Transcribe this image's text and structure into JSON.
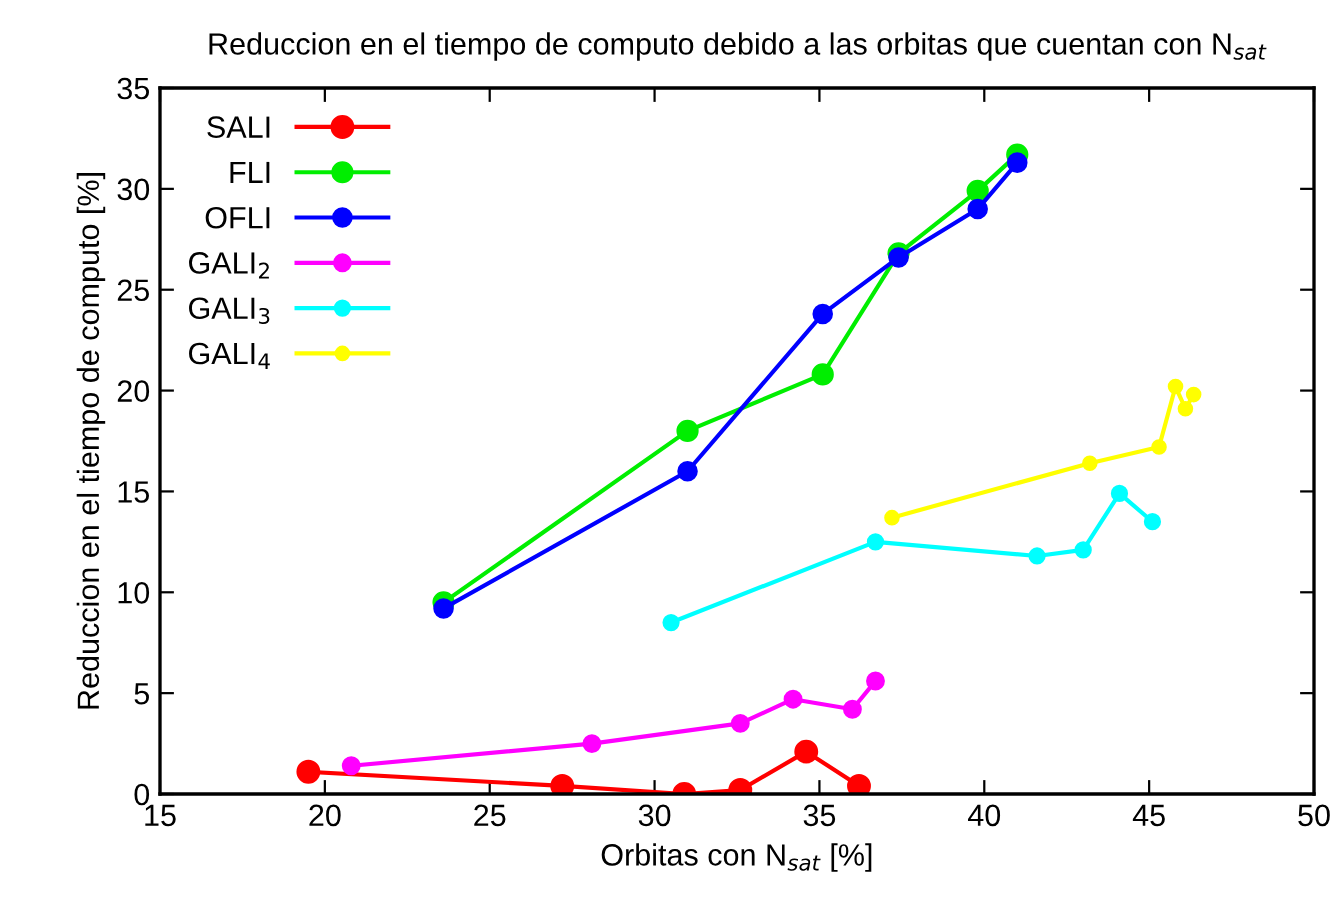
{
  "chart_data": {
    "type": "line",
    "title": "Reduccion en el tiempo de computo debido a las orbitas que cuentan con N$_{sat}$",
    "xlabel": "Orbitas con N$_{sat}$ [%]",
    "ylabel": "Reduccion en el tiempo de computo [%]",
    "xlim": [
      15,
      50
    ],
    "xticks": [
      15,
      20,
      25,
      30,
      35,
      40,
      45,
      50
    ],
    "ylim": [
      0,
      35
    ],
    "yticks": [
      0,
      5,
      10,
      15,
      20,
      25,
      30,
      35
    ],
    "grid": false,
    "legend": "top left",
    "marker": "circle",
    "line_style": "solid",
    "series": [
      {
        "name": "SALI",
        "color": "#ff0000",
        "x": [
          19.5,
          27.2,
          30.9,
          32.6,
          34.6,
          36.2
        ],
        "values": [
          1.1,
          0.4,
          0.0,
          0.2,
          2.1,
          0.4
        ]
      },
      {
        "name": "FLI",
        "color": "#00ee00",
        "x": [
          23.6,
          31.0,
          35.1,
          37.4,
          39.8,
          41.0
        ],
        "values": [
          9.5,
          18.0,
          20.8,
          26.8,
          29.9,
          31.7
        ]
      },
      {
        "name": "OFLI",
        "color": "#0000ff",
        "x": [
          23.6,
          31.0,
          35.1,
          37.4,
          39.8,
          41.0
        ],
        "values": [
          9.2,
          16.0,
          23.8,
          26.6,
          29.0,
          31.3
        ]
      },
      {
        "name": "GALI$_{2}$",
        "color": "#ff00ff",
        "x": [
          20.8,
          28.1,
          32.6,
          34.2,
          36.0,
          36.7
        ],
        "values": [
          1.4,
          2.5,
          3.5,
          4.7,
          4.2,
          5.6
        ]
      },
      {
        "name": "GALI$_{3}$",
        "color": "#00ffff",
        "x": [
          30.5,
          36.7,
          41.6,
          43.0,
          44.1,
          45.1
        ],
        "values": [
          8.5,
          12.5,
          11.8,
          12.1,
          14.9,
          13.5
        ]
      },
      {
        "name": "GALI$_{4}$",
        "color": "#ffff00",
        "x": [
          37.2,
          43.2,
          45.3,
          45.8,
          46.1,
          46.35
        ],
        "values": [
          13.7,
          16.4,
          17.2,
          20.2,
          19.1,
          19.8
        ]
      }
    ]
  }
}
